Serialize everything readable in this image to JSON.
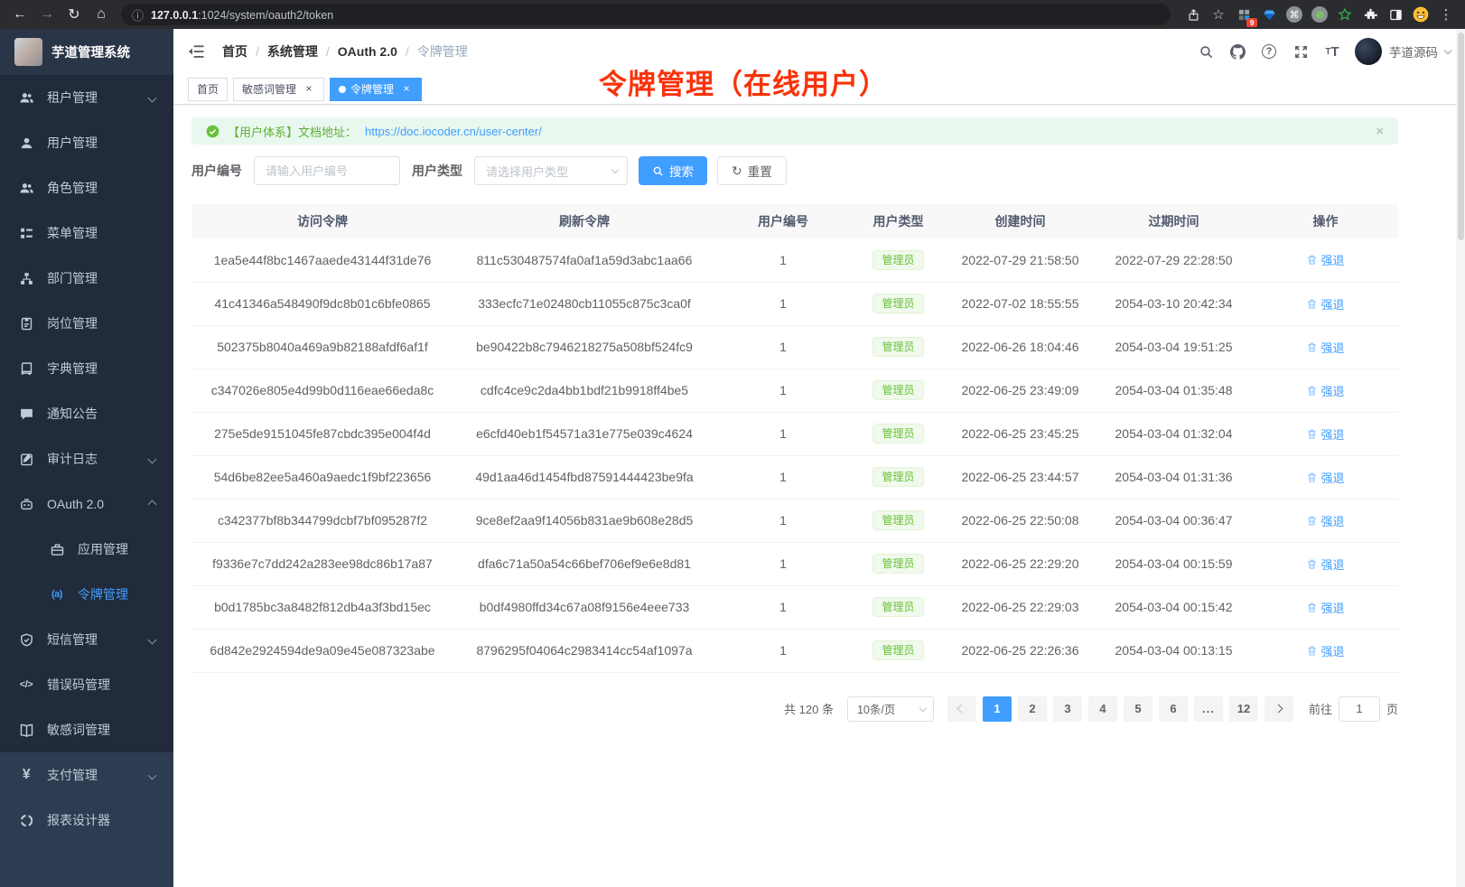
{
  "browser": {
    "url_host": "127.0.0.1",
    "url_path": ":1024/system/oauth2/token",
    "extension_badge": "9"
  },
  "app": {
    "title": "芋道管理系统",
    "user_name": "芋道源码"
  },
  "breadcrumb": [
    "首页",
    "系统管理",
    "OAuth 2.0",
    "令牌管理"
  ],
  "annotation": {
    "text": "令牌管理（在线用户）",
    "color": "#f93209"
  },
  "tabs": [
    {
      "key": "home",
      "label": "首页",
      "closable": false,
      "active": false
    },
    {
      "key": "sensitive-word",
      "label": "敏感词管理",
      "closable": true,
      "active": false
    },
    {
      "key": "token",
      "label": "令牌管理",
      "closable": true,
      "active": true
    }
  ],
  "sidebar": {
    "items": [
      {
        "key": "tenant",
        "label": "租户管理",
        "icon": "tenant-users-icon",
        "chevron": "down"
      },
      {
        "key": "user",
        "label": "用户管理",
        "icon": "user-icon"
      },
      {
        "key": "role",
        "label": "角色管理",
        "icon": "roles-icon"
      },
      {
        "key": "menu",
        "label": "菜单管理",
        "icon": "menu-tree-icon"
      },
      {
        "key": "dept",
        "label": "部门管理",
        "icon": "org-chart-icon"
      },
      {
        "key": "post",
        "label": "岗位管理",
        "icon": "post-badge-icon"
      },
      {
        "key": "dict",
        "label": "字典管理",
        "icon": "dictionary-icon"
      },
      {
        "key": "notice",
        "label": "通知公告",
        "icon": "notice-bubble-icon"
      },
      {
        "key": "audit-log",
        "label": "审计日志",
        "icon": "audit-log-icon",
        "chevron": "down"
      },
      {
        "key": "oauth2",
        "label": "OAuth 2.0",
        "icon": "robot-icon",
        "chevron": "up"
      },
      {
        "key": "oauth2-app",
        "label": "应用管理",
        "icon": "briefcase-icon",
        "indent": 1
      },
      {
        "key": "oauth2-token",
        "label": "令牌管理",
        "icon": "token-a-icon",
        "indent": 1,
        "active": true
      },
      {
        "key": "sms",
        "label": "短信管理",
        "icon": "shield-check-icon",
        "chevron": "down"
      },
      {
        "key": "error-code",
        "label": "错误码管理",
        "icon": "code-icon"
      },
      {
        "key": "sensitive-word",
        "label": "敏感词管理",
        "icon": "open-book-icon"
      },
      {
        "key": "pay",
        "label": "支付管理",
        "icon": "yen-icon",
        "chevron": "down",
        "section": "bottom"
      },
      {
        "key": "report",
        "label": "报表设计器",
        "icon": "report-circle-icon",
        "section": "bottom"
      }
    ]
  },
  "alert": {
    "text": "【用户体系】文档地址：",
    "link": "https://doc.iocoder.cn/user-center/"
  },
  "filters": {
    "user_id_label": "用户编号",
    "user_id_placeholder": "请输入用户编号",
    "user_type_label": "用户类型",
    "user_type_placeholder": "请选择用户类型",
    "search_label": "搜索",
    "reset_label": "重置"
  },
  "table": {
    "columns": [
      "访问令牌",
      "刷新令牌",
      "用户编号",
      "用户类型",
      "创建时间",
      "过期时间",
      "操作"
    ],
    "rows": [
      {
        "access_token": "1ea5e44f8bc1467aaede43144f31de76",
        "refresh_token": "811c530487574fa0af1a59d3abc1aa66",
        "user_id": "1",
        "user_type": "管理员",
        "create_time": "2022-07-29 21:58:50",
        "expire_time": "2022-07-29 22:28:50",
        "action": "强退"
      },
      {
        "access_token": "41c41346a548490f9dc8b01c6bfe0865",
        "refresh_token": "333ecfc71e02480cb11055c875c3ca0f",
        "user_id": "1",
        "user_type": "管理员",
        "create_time": "2022-07-02 18:55:55",
        "expire_time": "2054-03-10 20:42:34",
        "action": "强退"
      },
      {
        "access_token": "502375b8040a469a9b82188afdf6af1f",
        "refresh_token": "be90422b8c7946218275a508bf524fc9",
        "user_id": "1",
        "user_type": "管理员",
        "create_time": "2022-06-26 18:04:46",
        "expire_time": "2054-03-04 19:51:25",
        "action": "强退"
      },
      {
        "access_token": "c347026e805e4d99b0d116eae66eda8c",
        "refresh_token": "cdfc4ce9c2da4bb1bdf21b9918ff4be5",
        "user_id": "1",
        "user_type": "管理员",
        "create_time": "2022-06-25 23:49:09",
        "expire_time": "2054-03-04 01:35:48",
        "action": "强退"
      },
      {
        "access_token": "275e5de9151045fe87cbdc395e004f4d",
        "refresh_token": "e6cfd40eb1f54571a31e775e039c4624",
        "user_id": "1",
        "user_type": "管理员",
        "create_time": "2022-06-25 23:45:25",
        "expire_time": "2054-03-04 01:32:04",
        "action": "强退"
      },
      {
        "access_token": "54d6be82ee5a460a9aedc1f9bf223656",
        "refresh_token": "49d1aa46d1454fbd87591444423be9fa",
        "user_id": "1",
        "user_type": "管理员",
        "create_time": "2022-06-25 23:44:57",
        "expire_time": "2054-03-04 01:31:36",
        "action": "强退"
      },
      {
        "access_token": "c342377bf8b344799dcbf7bf095287f2",
        "refresh_token": "9ce8ef2aa9f14056b831ae9b608e28d5",
        "user_id": "1",
        "user_type": "管理员",
        "create_time": "2022-06-25 22:50:08",
        "expire_time": "2054-03-04 00:36:47",
        "action": "强退"
      },
      {
        "access_token": "f9336e7c7dd242a283ee98dc86b17a87",
        "refresh_token": "dfa6c71a50a54c66bef706ef9e6e8d81",
        "user_id": "1",
        "user_type": "管理员",
        "create_time": "2022-06-25 22:29:20",
        "expire_time": "2054-03-04 00:15:59",
        "action": "强退"
      },
      {
        "access_token": "b0d1785bc3a8482f812db4a3f3bd15ec",
        "refresh_token": "b0df4980ffd34c67a08f9156e4eee733",
        "user_id": "1",
        "user_type": "管理员",
        "create_time": "2022-06-25 22:29:03",
        "expire_time": "2054-03-04 00:15:42",
        "action": "强退"
      },
      {
        "access_token": "6d842e2924594de9a09e45e087323abe",
        "refresh_token": "8796295f04064c2983414cc54af1097a",
        "user_id": "1",
        "user_type": "管理员",
        "create_time": "2022-06-25 22:26:36",
        "expire_time": "2054-03-04 00:13:15",
        "action": "强退"
      }
    ]
  },
  "pagination": {
    "total_label": "共 120 条",
    "page_size": "10条/页",
    "pages": [
      "1",
      "2",
      "3",
      "4",
      "5",
      "6",
      "...",
      "12"
    ],
    "active_page": "1",
    "goto_label": "前往",
    "goto_value": "1",
    "goto_suffix": "页"
  },
  "colors": {
    "accent": "#409eff",
    "success": "#67c23a",
    "annotation_red": "#f93209",
    "sidebar_bg": "#212b3b",
    "sidebar_bottom_bg": "#2e3c51",
    "tag_success_bg": "#f0f9eb",
    "alert_bg": "#e9f8ef"
  }
}
